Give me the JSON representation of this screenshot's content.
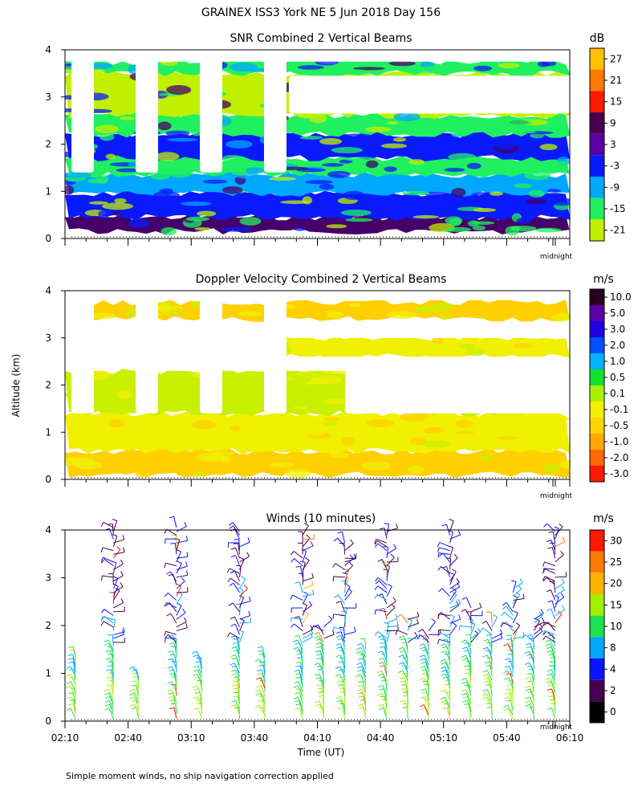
{
  "header": {
    "title": "GRAINEX ISS3 York NE   5 Jun 2018 Day 156"
  },
  "footer": {
    "note": "Simple moment winds, no ship navigation correction applied"
  },
  "shared": {
    "ylabel": "Altitude (km)",
    "xlabel": "Time (UT)",
    "midnight_label": "midnight",
    "y_ticks": [
      "0",
      "1",
      "2",
      "3",
      "4"
    ],
    "x_ticks": [
      "02:10",
      "02:40",
      "03:10",
      "03:40",
      "04:10",
      "04:40",
      "05:10",
      "05:40",
      "06:10"
    ]
  },
  "chart_data": [
    {
      "id": "snr",
      "type": "heatmap",
      "title": "SNR Combined 2 Vertical Beams",
      "units": "dB",
      "ylabel": "Altitude (km)",
      "xlim": [
        "02:10",
        "06:10"
      ],
      "ylim": [
        0,
        4
      ],
      "colorbar_labels": [
        "27",
        "21",
        "15",
        "9",
        "3",
        "-3",
        "-9",
        "-15",
        "-21"
      ],
      "colorbar_colors": [
        "#ffc000",
        "#ff7a00",
        "#ff1a00",
        "#46004f",
        "#5a00a8",
        "#0a1aff",
        "#00a8ff",
        "#20f060",
        "#c0f000"
      ],
      "layers": [
        {
          "alt_km": [
            0.15,
            0.45
          ],
          "value_db": 6,
          "color": "#46006a"
        },
        {
          "alt_km": [
            0.45,
            0.95
          ],
          "value_db": -3,
          "color": "#0a1aff"
        },
        {
          "alt_km": [
            0.95,
            1.35
          ],
          "value_db": -9,
          "color": "#00a8ff"
        },
        {
          "alt_km": [
            1.35,
            1.7
          ],
          "value_db": -15,
          "color": "#20f060"
        },
        {
          "alt_km": [
            1.7,
            2.2
          ],
          "value_db": -3,
          "color": "#0a1aff"
        },
        {
          "alt_km": [
            2.2,
            2.6
          ],
          "value_db": -15,
          "color": "#20f060"
        },
        {
          "alt_km": [
            2.6,
            3.5
          ],
          "value_db": -21,
          "color": "#c0f000"
        },
        {
          "alt_km": [
            3.5,
            3.75
          ],
          "value_db": -15,
          "color": "#20f060"
        }
      ]
    },
    {
      "id": "doppler",
      "type": "heatmap",
      "title": "Doppler Velocity Combined 2 Vertical Beams",
      "units": "m/s",
      "ylabel": "Altitude (km)",
      "xlim": [
        "02:10",
        "06:10"
      ],
      "ylim": [
        0,
        4
      ],
      "colorbar_labels": [
        "10.0",
        "5.0",
        "3.0",
        "2.0",
        "1.0",
        "0.5",
        "0.1",
        "-0.1",
        "-0.5",
        "-1.0",
        "-2.0",
        "-3.0"
      ],
      "colorbar_colors": [
        "#28001e",
        "#5a00a8",
        "#1e00e0",
        "#0050ff",
        "#00b4ff",
        "#10e030",
        "#a8f000",
        "#f0f000",
        "#ffd400",
        "#ffa800",
        "#ff6a00",
        "#ff1a00"
      ],
      "layers": [
        {
          "alt_km": [
            0.1,
            0.6
          ],
          "value_ms": -0.5,
          "color": "#ffd000"
        },
        {
          "alt_km": [
            0.6,
            1.4
          ],
          "value_ms": -0.1,
          "color": "#f0f000"
        },
        {
          "alt_km": [
            1.4,
            2.3
          ],
          "value_ms": 0.1,
          "color": "#c8f000"
        },
        {
          "alt_km": [
            2.6,
            3.0
          ],
          "value_ms": -0.1,
          "color": "#f0f000"
        },
        {
          "alt_km": [
            3.4,
            3.75
          ],
          "value_ms": -0.5,
          "color": "#ffd000"
        }
      ]
    },
    {
      "id": "winds",
      "type": "scatter",
      "title": "Winds (10 minutes)",
      "units": "m/s",
      "xlabel": "Time (UT)",
      "ylabel": "Altitude (km)",
      "xlim": [
        "02:10",
        "06:10"
      ],
      "ylim": [
        0,
        4
      ],
      "colorbar_labels": [
        "30",
        "25",
        "20",
        "15",
        "10",
        "8",
        "4",
        "2",
        "0"
      ],
      "colorbar_colors": [
        "#ff1a00",
        "#ff7a00",
        "#ffb400",
        "#a0f000",
        "#20e050",
        "#00a8ff",
        "#0a14ff",
        "#46004f",
        "#000000"
      ],
      "profiles": [
        {
          "time": "02:15",
          "top_km": 1.4
        },
        {
          "time": "02:33",
          "top_km": 4.1
        },
        {
          "time": "02:45",
          "top_km": 1.0
        },
        {
          "time": "03:03",
          "top_km": 4.1
        },
        {
          "time": "03:15",
          "top_km": 1.3
        },
        {
          "time": "03:33",
          "top_km": 4.0
        },
        {
          "time": "03:45",
          "top_km": 1.4
        },
        {
          "time": "04:03",
          "top_km": 3.9
        },
        {
          "time": "04:13",
          "top_km": 2.0
        },
        {
          "time": "04:23",
          "top_km": 3.8
        },
        {
          "time": "04:33",
          "top_km": 1.5
        },
        {
          "time": "04:43",
          "top_km": 4.0
        },
        {
          "time": "04:53",
          "top_km": 2.2
        },
        {
          "time": "05:03",
          "top_km": 1.9
        },
        {
          "time": "05:13",
          "top_km": 4.0
        },
        {
          "time": "05:23",
          "top_km": 2.4
        },
        {
          "time": "05:33",
          "top_km": 2.1
        },
        {
          "time": "05:43",
          "top_km": 2.8
        },
        {
          "time": "05:53",
          "top_km": 2.2
        },
        {
          "time": "06:03",
          "top_km": 4.0
        }
      ]
    }
  ]
}
